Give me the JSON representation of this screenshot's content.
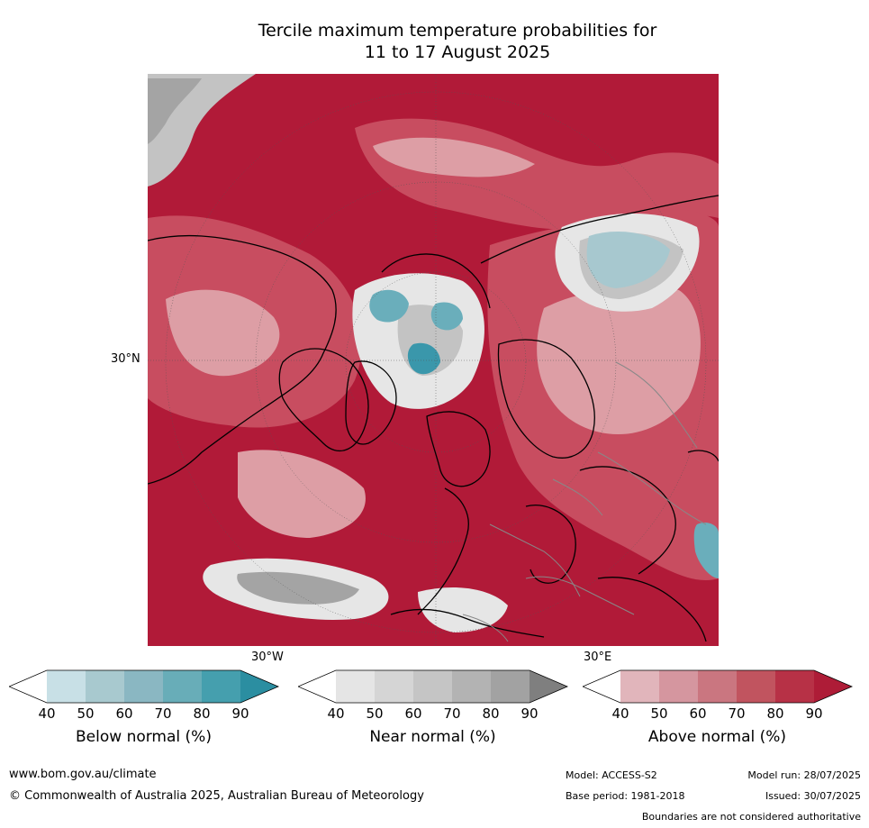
{
  "title_line1": "Tercile maximum temperature probabilities for",
  "title_line2": "11 to 17 August 2025",
  "map": {
    "lat_label": "30°N",
    "lon_labels": [
      "30°W",
      "30°E"
    ],
    "colors": {
      "above_strong": "#b11a38",
      "above_mid": "#c84d60",
      "above_light": "#dd9ea5",
      "near_light": "#e6e6e6",
      "near_mid": "#c3c3c3",
      "near_dark": "#a4a4a4",
      "below_light": "#a7c8cf",
      "below_mid": "#6aaebb",
      "below_strong": "#3a97ab",
      "coastline": "#000000",
      "borders": "#888888"
    }
  },
  "colorbars": [
    {
      "name": "below",
      "title": "Below normal (%)",
      "ticks": [
        "40",
        "50",
        "60",
        "70",
        "80",
        "90"
      ],
      "colors": [
        "#ffffff",
        "#c8e0e6",
        "#a8c9cf",
        "#8ab7c2",
        "#68adb8",
        "#459fae",
        "#2b8ea1"
      ]
    },
    {
      "name": "near",
      "title": "Near normal (%)",
      "ticks": [
        "40",
        "50",
        "60",
        "70",
        "80",
        "90"
      ],
      "colors": [
        "#ffffff",
        "#e5e5e5",
        "#d5d5d5",
        "#c5c5c5",
        "#b3b3b3",
        "#a2a2a2",
        "#7f7f7f"
      ]
    },
    {
      "name": "above",
      "title": "Above normal (%)",
      "ticks": [
        "40",
        "50",
        "60",
        "70",
        "80",
        "90"
      ],
      "colors": [
        "#ffffff",
        "#e1b5bb",
        "#d5969f",
        "#ca7680",
        "#c1545f",
        "#b73146",
        "#ae1c37"
      ]
    }
  ],
  "footer": {
    "website": "www.bom.gov.au/climate",
    "copyright": "© Commonwealth of Australia 2025, Australian Bureau of Meteorology",
    "model": "Model: ACCESS-S2",
    "base_period": "Base period: 1981-2018",
    "model_run": "Model run: 28/07/2025",
    "issued": "Issued: 30/07/2025",
    "disclaimer": "Boundaries are not considered authoritative"
  }
}
